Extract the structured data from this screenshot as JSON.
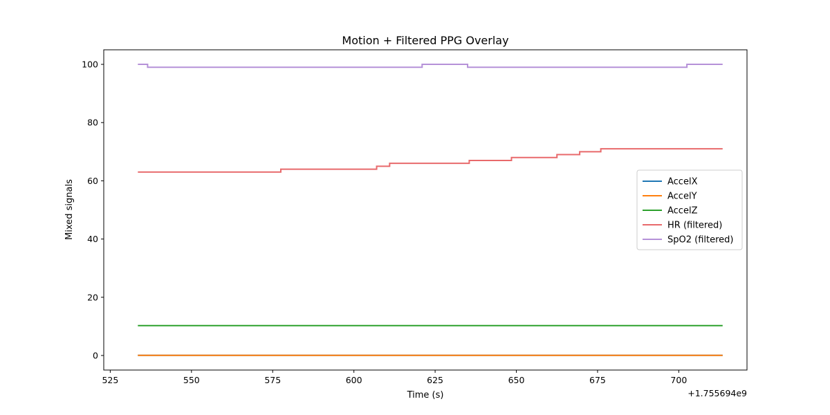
{
  "chart_data": {
    "type": "line",
    "title": "Motion + Filtered PPG Overlay",
    "xlabel": "Time (s)",
    "ylabel": "Mixed signals",
    "x_offset_label": "+1.755694e9",
    "xlim": [
      523,
      721
    ],
    "ylim": [
      -5,
      105
    ],
    "xticks": [
      525,
      550,
      575,
      600,
      625,
      650,
      675,
      700
    ],
    "yticks": [
      0,
      20,
      40,
      60,
      80,
      100
    ],
    "grid": false,
    "legend_position": "center-right",
    "series": [
      {
        "name": "AccelX",
        "color": "#1f77b4",
        "style": "constant",
        "x": [
          533.5,
          713.5
        ],
        "y": [
          0.05,
          0.05
        ]
      },
      {
        "name": "AccelY",
        "color": "#ff7f0e",
        "style": "constant",
        "x": [
          533.5,
          713.5
        ],
        "y": [
          0.05,
          0.05
        ]
      },
      {
        "name": "AccelZ",
        "color": "#2ca02c",
        "style": "constant",
        "x": [
          533.5,
          713.5
        ],
        "y": [
          10.25,
          10.25
        ]
      },
      {
        "name": "HR (filtered)",
        "color": "#e8696b",
        "style": "step",
        "x": [
          533.5,
          577.5,
          607,
          611,
          635.5,
          648.5,
          662.5,
          669.5,
          676,
          713.5
        ],
        "y": [
          63,
          64,
          65,
          66,
          67,
          68,
          69,
          70,
          71,
          71
        ]
      },
      {
        "name": "SpO2 (filtered)",
        "color": "#b591d8",
        "style": "step",
        "x": [
          533.5,
          536.5,
          621,
          635,
          702.5,
          713.5
        ],
        "y": [
          100,
          99,
          100,
          99,
          100,
          100
        ]
      }
    ]
  }
}
